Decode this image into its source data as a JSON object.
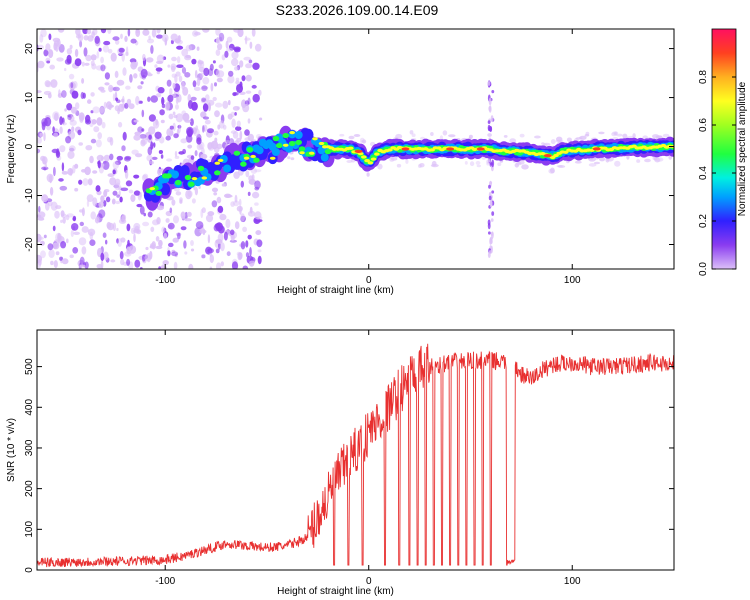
{
  "title": "S233.2026.109.00.14.E09",
  "colors": {
    "signal": "#e83030",
    "background": "#ffffff",
    "axis": "#000000"
  },
  "chart_data": [
    {
      "type": "heatmap",
      "title": "S233.2026.109.00.14.E09",
      "xlabel": "Height of straight line (km)",
      "ylabel": "Frequency (Hz)",
      "xlim": [
        -163,
        150
      ],
      "ylim": [
        -25,
        24
      ],
      "xticks": [
        -100,
        0,
        100
      ],
      "yticks": [
        -20,
        -10,
        0,
        10,
        20
      ],
      "ridge": {
        "x": [
          -108,
          -100,
          -90,
          -80,
          -70,
          -60,
          -50,
          -40,
          -30,
          -20,
          -10,
          -5,
          0,
          5,
          10,
          30,
          50,
          60,
          65,
          70,
          80,
          90,
          95,
          110,
          130,
          150
        ],
        "y": [
          -10,
          -7,
          -6,
          -5,
          -3,
          -2,
          -1,
          1,
          0.5,
          -0.5,
          -0.5,
          -1,
          -3.5,
          -1,
          -0.5,
          -0.5,
          -0.5,
          -0.5,
          -1,
          -1,
          -1.2,
          -2,
          -1,
          -0.5,
          -0.2,
          0
        ]
      },
      "colorbar": {
        "label": "Normalized spectral amplitude",
        "range": [
          0,
          1
        ],
        "ticks": [
          0.0,
          0.2,
          0.4,
          0.6,
          0.8
        ]
      }
    },
    {
      "type": "line",
      "xlabel": "Height of straight line (km)",
      "ylabel": "SNR (10 * v/v)",
      "xlim": [
        -163,
        150
      ],
      "ylim": [
        0,
        590
      ],
      "xticks": [
        -100,
        0,
        100
      ],
      "yticks": [
        0,
        100,
        200,
        300,
        400,
        500
      ],
      "series": [
        {
          "name": "SNR",
          "x": [
            -163,
            -140,
            -120,
            -100,
            -90,
            -80,
            -70,
            -60,
            -50,
            -40,
            -30,
            -25,
            -20,
            -15,
            -10,
            -5,
            0,
            5,
            10,
            15,
            20,
            25,
            30,
            35,
            40,
            50,
            60,
            65,
            70,
            72,
            75,
            80,
            85,
            90,
            100,
            110,
            120,
            130,
            140,
            150
          ],
          "values": [
            18,
            20,
            22,
            25,
            35,
            50,
            65,
            60,
            55,
            60,
            80,
            130,
            180,
            230,
            270,
            300,
            340,
            370,
            400,
            440,
            470,
            490,
            500,
            505,
            510,
            515,
            515,
            512,
            510,
            500,
            480,
            470,
            490,
            505,
            510,
            500,
            500,
            505,
            510,
            505
          ],
          "dropouts_x": [
            -17,
            -10,
            -3,
            8,
            15,
            20,
            24,
            28,
            32,
            36,
            40,
            44,
            48,
            52,
            56,
            60,
            68,
            70
          ]
        }
      ]
    }
  ]
}
